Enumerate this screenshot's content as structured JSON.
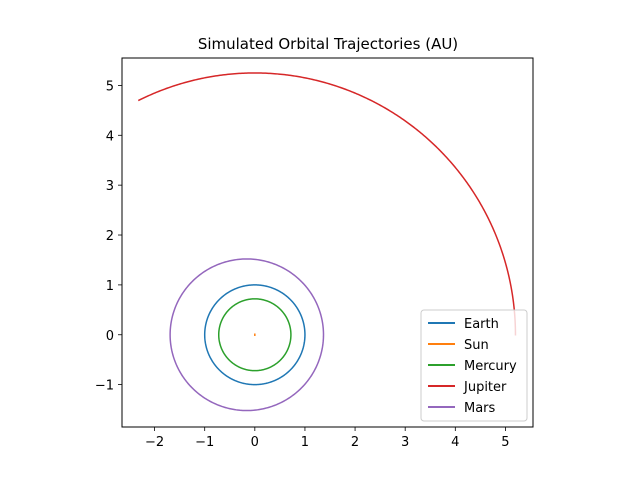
{
  "chart_data": {
    "type": "line",
    "title": "Simulated Orbital Trajectories (AU)",
    "xlabel": "",
    "ylabel": "",
    "xlim": [
      -2.65,
      5.55
    ],
    "ylim": [
      -1.85,
      5.55
    ],
    "aspect": "equal",
    "grid": false,
    "legend_position": "lower-right",
    "x_ticks": [
      -2,
      -1,
      0,
      1,
      2,
      3,
      4,
      5
    ],
    "y_ticks": [
      -1,
      0,
      1,
      2,
      3,
      4,
      5
    ],
    "x_tick_labels": [
      "−2",
      "−1",
      "0",
      "1",
      "2",
      "3",
      "4",
      "5"
    ],
    "y_tick_labels": [
      "−1",
      "0",
      "1",
      "2",
      "3",
      "4",
      "5"
    ],
    "series": [
      {
        "name": "Earth",
        "color": "#1f77b4",
        "shape": "ellipse",
        "center": [
          0.0,
          0.0
        ],
        "radius_x": 1.0,
        "radius_y": 1.0,
        "revolutions": 1.0
      },
      {
        "name": "Sun",
        "color": "#ff7f0e",
        "shape": "point",
        "x": [
          0.0,
          0.0
        ],
        "y": [
          -0.01,
          0.01
        ]
      },
      {
        "name": "Mercury",
        "color": "#2ca02c",
        "shape": "ellipse",
        "center": [
          0.0,
          0.0
        ],
        "radius_x": 0.72,
        "radius_y": 0.72,
        "revolutions": 1.0
      },
      {
        "name": "Jupiter",
        "color": "#d62728",
        "shape": "arc",
        "center": [
          0.0,
          0.0
        ],
        "radius_x": 5.2,
        "radius_y": 5.25,
        "start_deg": 0,
        "end_deg": 116.4
      },
      {
        "name": "Mars",
        "color": "#9467bd",
        "shape": "ellipse",
        "center": [
          -0.16,
          0.0
        ],
        "radius_x": 1.53,
        "radius_y": 1.52,
        "revolutions": 1.0
      }
    ]
  }
}
